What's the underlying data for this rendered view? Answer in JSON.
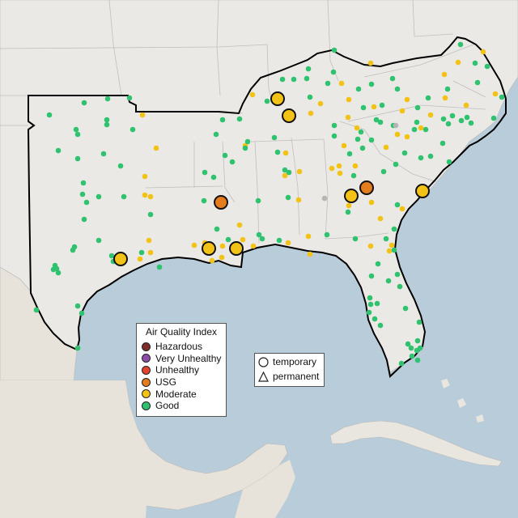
{
  "legend": {
    "title": "Air Quality Index",
    "categories": [
      {
        "label": "Hazardous",
        "color": "#7e2c2c"
      },
      {
        "label": "Very Unhealthy",
        "color": "#8e4ca8"
      },
      {
        "label": "Unhealthy",
        "color": "#e0442f"
      },
      {
        "label": "USG",
        "color": "#e57c1e"
      },
      {
        "label": "Moderate",
        "color": "#f2c316"
      },
      {
        "label": "Good",
        "color": "#2fc36f"
      }
    ]
  },
  "site_legend": {
    "items": [
      {
        "label": "temporary",
        "shape": "circle"
      },
      {
        "label": "permanent",
        "shape": "triangle"
      }
    ]
  }
}
